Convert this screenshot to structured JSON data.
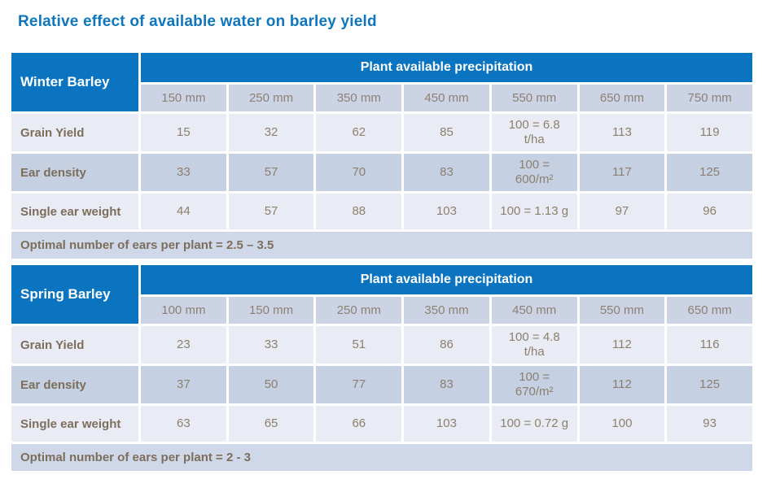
{
  "page": {
    "title": "Relative effect of available water on barley yield"
  },
  "colors": {
    "header_blue": "#0b74c1",
    "title_blue": "#0e76bd",
    "column_header_bg": "#cbd3e5",
    "row_light_bg": "#e9ecf5",
    "row_dark_bg": "#c5d0e3",
    "footer_bg": "#cfd8e8",
    "label_text": "#7d6e5c",
    "value_text": "#8d7f6d"
  },
  "chart_data": [
    {
      "type": "table",
      "title": "Winter Barley",
      "span_header": "Plant available precipitation",
      "columns": [
        "150 mm",
        "250 mm",
        "350 mm",
        "450 mm",
        "550 mm",
        "650 mm",
        "750 mm"
      ],
      "rows": [
        {
          "label": "Grain Yield",
          "values": [
            "15",
            "32",
            "62",
            "85",
            "100 = 6.8 t/ha",
            "113",
            "119"
          ]
        },
        {
          "label": "Ear density",
          "values": [
            "33",
            "57",
            "70",
            "83",
            "100 = 600/m²",
            "117",
            "125"
          ]
        },
        {
          "label": "Single ear weight",
          "values": [
            "44",
            "57",
            "88",
            "103",
            "100 = 1.13 g",
            "97",
            "96"
          ]
        }
      ],
      "footer": "Optimal number of ears per plant = 2.5 – 3.5"
    },
    {
      "type": "table",
      "title": "Spring Barley",
      "span_header": "Plant available precipitation",
      "columns": [
        "100 mm",
        "150 mm",
        "250 mm",
        "350 mm",
        "450 mm",
        "550 mm",
        "650 mm"
      ],
      "rows": [
        {
          "label": "Grain Yield",
          "values": [
            "23",
            "33",
            "51",
            "86",
            "100 = 4.8 t/ha",
            "112",
            "116"
          ]
        },
        {
          "label": "Ear density",
          "values": [
            "37",
            "50",
            "77",
            "83",
            "100 = 670/m²",
            "112",
            "125"
          ]
        },
        {
          "label": "Single ear weight",
          "values": [
            "63",
            "65",
            "66",
            "103",
            "100 = 0.72 g",
            "100",
            "93"
          ]
        }
      ],
      "footer": "Optimal number of ears per plant = 2 - 3"
    }
  ]
}
